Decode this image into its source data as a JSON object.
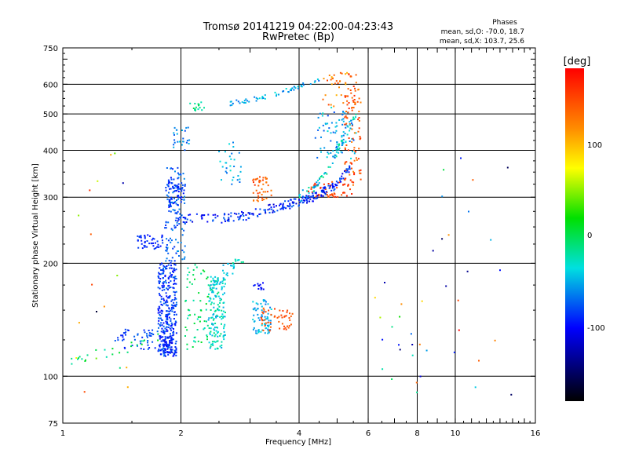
{
  "chart_data": {
    "type": "scatter",
    "title": "Tromsø 20141219 04:22:00-04:23:43",
    "subtitle": "RwPretec (Bp)",
    "xlabel": "Frequency [MHz]",
    "ylabel": "Stationary phase Virtual Height [km]",
    "x_scale": "log",
    "y_scale": "log",
    "xlim": [
      1,
      16
    ],
    "ylim": [
      75,
      750
    ],
    "x_ticks": [
      "1",
      "2",
      "4",
      "6",
      "8",
      "10",
      "16"
    ],
    "y_ticks": [
      "75",
      "100",
      "200",
      "300",
      "400",
      "500",
      "600",
      "750"
    ],
    "grid": true,
    "legend": {
      "title": "Phases",
      "lines": [
        "mean, sd,O: -70.0, 18.7",
        "mean, sd,X: 103.7, 25.6"
      ]
    },
    "colorbar": {
      "label": "[deg]",
      "ticks": [
        "100",
        "0",
        "-100"
      ],
      "tick_values": [
        100,
        0,
        -100
      ],
      "range": [
        -180,
        180
      ]
    },
    "clusters": [
      {
        "x": [
          1.75,
          1.95
        ],
        "y": [
          112,
          200
        ],
        "phase": [
          -130,
          -95
        ],
        "count": 320
      },
      {
        "x": [
          1.82,
          2.05
        ],
        "y": [
          200,
          360
        ],
        "phase": [
          -120,
          -85
        ],
        "count": 120
      },
      {
        "x": [
          2.35,
          2.6
        ],
        "y": [
          118,
          185
        ],
        "phase": [
          -85,
          -40
        ],
        "count": 160
      },
      {
        "x": [
          2.55,
          2.75
        ],
        "y": [
          185,
          200
        ],
        "phase": [
          -90,
          -60
        ],
        "count": 15
      },
      {
        "x": [
          1.8,
          1.9
        ],
        "y": [
          115,
          128
        ],
        "phase": [
          -140,
          -110
        ],
        "count": 40
      },
      {
        "x": [
          2.05,
          2.35
        ],
        "y": [
          118,
          200
        ],
        "phase": [
          -60,
          -20
        ],
        "count": 60
      },
      {
        "x": [
          1.35,
          1.75
        ],
        "y": [
          118,
          135
        ],
        "phase": [
          -125,
          -100
        ],
        "count": 50
      },
      {
        "x": [
          1.55,
          1.8
        ],
        "y": [
          218,
          238
        ],
        "phase": [
          -130,
          -110
        ],
        "count": 45
      },
      {
        "x": [
          3.05,
          3.4
        ],
        "y": [
          130,
          160
        ],
        "phase": [
          -100,
          -60
        ],
        "count": 70
      },
      {
        "x": [
          3.2,
          3.85
        ],
        "y": [
          132,
          152
        ],
        "phase": [
          115,
          145
        ],
        "count": 50
      },
      {
        "x": [
          3.05,
          3.25
        ],
        "y": [
          170,
          178
        ],
        "phase": [
          -140,
          -120
        ],
        "count": 12
      },
      {
        "x": [
          3.05,
          3.4
        ],
        "y": [
          290,
          340
        ],
        "phase": [
          100,
          150
        ],
        "count": 45
      },
      {
        "x": [
          2.6,
          2.9
        ],
        "y": [
          200,
          205
        ],
        "phase": [
          -70,
          -40
        ],
        "count": 8
      },
      {
        "x": [
          4.2,
          5.45
        ],
        "y": [
          300,
          330
        ],
        "phase": [
          120,
          170
        ],
        "count": 50
      },
      {
        "x": [
          4.4,
          5.6
        ],
        "y": [
          380,
          520
        ],
        "phase": [
          -110,
          -60
        ],
        "count": 80
      },
      {
        "x": [
          5.2,
          5.75
        ],
        "y": [
          320,
          640
        ],
        "phase": [
          90,
          160
        ],
        "count": 100
      },
      {
        "x": [
          4.6,
          5.3
        ],
        "y": [
          520,
          650
        ],
        "phase": [
          70,
          140
        ],
        "count": 30
      },
      {
        "x": [
          1.85,
          2.05
        ],
        "y": [
          280,
          340
        ],
        "phase": [
          -130,
          -100
        ],
        "count": 60
      },
      {
        "x": [
          1.9,
          2.1
        ],
        "y": [
          400,
          460
        ],
        "phase": [
          -110,
          -70
        ],
        "count": 25
      },
      {
        "x": [
          2.5,
          2.85
        ],
        "y": [
          320,
          420
        ],
        "phase": [
          -100,
          -60
        ],
        "count": 30
      },
      {
        "x": [
          2.05,
          2.3
        ],
        "y": [
          510,
          540
        ],
        "phase": [
          -60,
          -30
        ],
        "count": 15
      },
      {
        "x": [
          6.2,
          8.5
        ],
        "y": [
          90,
          180
        ],
        "phase": [
          -180,
          180
        ],
        "count": 20
      },
      {
        "x": [
          8.5,
          14.5
        ],
        "y": [
          85,
          600
        ],
        "phase": [
          -180,
          180
        ],
        "count": 20
      },
      {
        "x": [
          1.05,
          1.5
        ],
        "y": [
          88,
          420
        ],
        "phase": [
          -180,
          180
        ],
        "count": 18
      }
    ],
    "traces": [
      {
        "x": [
          1.9,
          2.3,
          2.8,
          3.2,
          3.6,
          4.0,
          4.4,
          4.9,
          5.4
        ],
        "y": [
          265,
          262,
          265,
          275,
          283,
          292,
          302,
          320,
          360
        ],
        "spread": 8,
        "phase": [
          -140,
          -100
        ],
        "count": 230
      },
      {
        "x": [
          2.6,
          3.0,
          3.5,
          4.0,
          4.5
        ],
        "y": [
          530,
          545,
          565,
          590,
          620
        ],
        "spread": 8,
        "phase": [
          -100,
          -60
        ],
        "count": 55
      },
      {
        "x": [
          4.0,
          4.3,
          4.6,
          4.9,
          5.2,
          5.6
        ],
        "y": [
          300,
          315,
          340,
          380,
          430,
          500
        ],
        "spread": 10,
        "phase": [
          -100,
          -40
        ],
        "count": 70
      },
      {
        "x": [
          1.05,
          1.15,
          1.3,
          1.5,
          1.75
        ],
        "y": [
          110,
          113,
          116,
          120,
          126
        ],
        "spread": 4,
        "phase": [
          -60,
          -20
        ],
        "count": 25
      }
    ]
  }
}
